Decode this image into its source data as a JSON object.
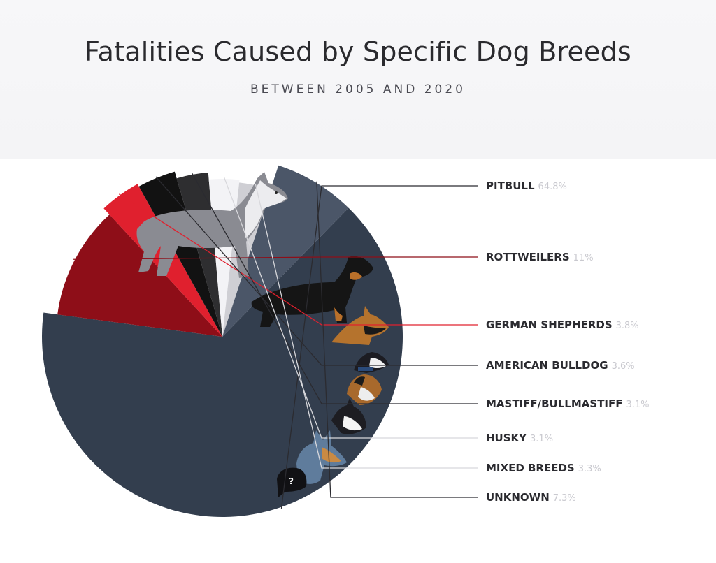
{
  "chart_data": {
    "type": "pie",
    "title": "Fatalities Caused by Specific Dog Breeds",
    "subtitle": "BETWEEN 2005 AND 2020",
    "slices": [
      {
        "label": "PITBULL",
        "value": 64.8,
        "value_label": "64.8%",
        "color": "#333e4e"
      },
      {
        "label": "ROTTWEILERS",
        "value": 11,
        "value_label": "11%",
        "color": "#8e0e18"
      },
      {
        "label": "GERMAN SHEPHERDS",
        "value": 3.8,
        "value_label": "3.8%",
        "color": "#e0202e"
      },
      {
        "label": "AMERICAN BULLDOG",
        "value": 3.6,
        "value_label": "3.6%",
        "color": "#121212"
      },
      {
        "label": "MASTIFF/BULLMASTIFF",
        "value": 3.1,
        "value_label": "3.1%",
        "color": "#2e2e30"
      },
      {
        "label": "HUSKY",
        "value": 3.1,
        "value_label": "3.1%",
        "color": "#f3f3f6"
      },
      {
        "label": "MIXED BREEDS",
        "value": 3.3,
        "value_label": "3.3%",
        "color": "#cfcfd4"
      },
      {
        "label": "UNKNOWN",
        "value": 7.3,
        "value_label": "7.3%",
        "color": "#4b5668"
      }
    ]
  }
}
